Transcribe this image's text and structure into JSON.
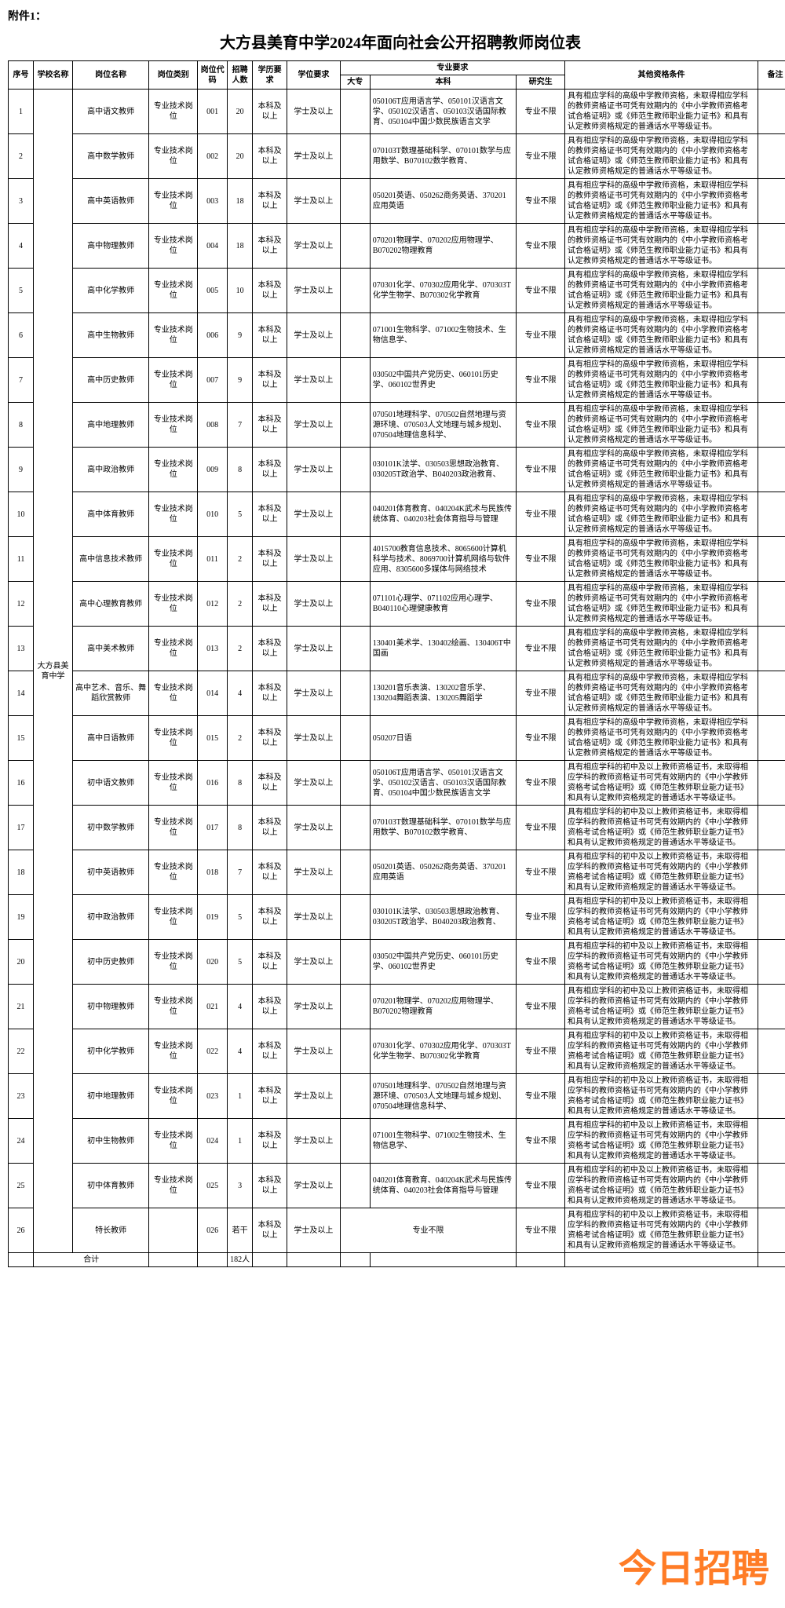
{
  "attachment_label": "附件1：",
  "title": "大方县美育中学2024年面向社会公开招聘教师岗位表",
  "headers": {
    "seq": "序号",
    "school": "学校名称",
    "posname": "岗位名称",
    "postype": "岗位类别",
    "code": "岗位代码",
    "count": "招聘人数",
    "edu": "学历要求",
    "degree": "学位要求",
    "major_group": "专业要求",
    "dazhuan": "大专",
    "benke": "本科",
    "yanjiu": "研究生",
    "other": "其他资格条件",
    "remark": "备注"
  },
  "school_name": "大方县美育中学",
  "total_label": "合计",
  "total_count": "182人",
  "watermark": "今日招聘",
  "common": {
    "postype": "专业技术岗位",
    "edu": "本科及以上",
    "degree": "学士及以上",
    "yanjiu": "专业不限",
    "other_gaozhong": "具有相应学科的高级中学教师资格，未取得相应学科的教师资格证书可凭有效期内的《中小学教师资格考试合格证明》或《师范生教师职业能力证书》和具有认定教师资格规定的普通话水平等级证书。",
    "other_chuzhong": "具有相应学科的初中及以上教师资格证书，未取得相应学科的教师资格证书可凭有效期内的《中小学教师资格考试合格证明》或《师范生教师职业能力证书》和具有认定教师资格规定的普通话水平等级证书。"
  },
  "rows": [
    {
      "seq": "1",
      "posname": "高中语文教师",
      "code": "001",
      "count": "20",
      "benke": "050106T应用语言学、050101汉语言文学、050102汉语言、050103汉语国际教育、050104中国少数民族语言文学",
      "other_key": "other_gaozhong"
    },
    {
      "seq": "2",
      "posname": "高中数学教师",
      "code": "002",
      "count": "20",
      "benke": "070103T数理基础科学、070101数学与应用数学、B070102数学教育、",
      "other_key": "other_gaozhong"
    },
    {
      "seq": "3",
      "posname": "高中英语教师",
      "code": "003",
      "count": "18",
      "benke": "050201英语、050262商务英语、370201应用英语",
      "other_key": "other_gaozhong"
    },
    {
      "seq": "4",
      "posname": "高中物理教师",
      "code": "004",
      "count": "18",
      "benke": "070201物理学、070202应用物理学、B070202物理教育",
      "other_key": "other_gaozhong"
    },
    {
      "seq": "5",
      "posname": "高中化学教师",
      "code": "005",
      "count": "10",
      "benke": "070301化学、070302应用化学、070303T化学生物学、B070302化学教育",
      "other_key": "other_gaozhong"
    },
    {
      "seq": "6",
      "posname": "高中生物教师",
      "code": "006",
      "count": "9",
      "benke": "071001生物科学、071002生物技术、生物信息学、",
      "other_key": "other_gaozhong"
    },
    {
      "seq": "7",
      "posname": "高中历史教师",
      "code": "007",
      "count": "9",
      "benke": "030502中国共产党历史、060101历史学、060102世界史",
      "other_key": "other_gaozhong"
    },
    {
      "seq": "8",
      "posname": "高中地理教师",
      "code": "008",
      "count": "7",
      "benke": "070501地理科学、070502自然地理与资源环境、070503人文地理与城乡规划、070504地理信息科学、",
      "other_key": "other_gaozhong"
    },
    {
      "seq": "9",
      "posname": "高中政治教师",
      "code": "009",
      "count": "8",
      "benke": "030101K法学、030503思想政治教育、030205T政治学、B040203政治教育、",
      "other_key": "other_gaozhong"
    },
    {
      "seq": "10",
      "posname": "高中体育教师",
      "code": "010",
      "count": "5",
      "benke": "040201体育教育、040204K武术与民族传统体育、040203社会体育指导与管理",
      "other_key": "other_gaozhong"
    },
    {
      "seq": "11",
      "posname": "高中信息技术教师",
      "code": "011",
      "count": "2",
      "benke": "4015700教育信息技术、8065600计算机科学与技术、8069700计算机网络与软件应用、8305600多媒体与网络技术",
      "other_key": "other_gaozhong"
    },
    {
      "seq": "12",
      "posname": "高中心理教育教师",
      "code": "012",
      "count": "2",
      "benke": "071101心理学、071102应用心理学、B040110心理健康教育",
      "other_key": "other_gaozhong"
    },
    {
      "seq": "13",
      "posname": "高中美术教师",
      "code": "013",
      "count": "2",
      "benke": "130401美术学、130402绘画、130406T中国画",
      "other_key": "other_gaozhong"
    },
    {
      "seq": "14",
      "posname": "高中艺术、音乐、舞蹈欣赏教师",
      "code": "014",
      "count": "4",
      "benke": "130201音乐表演、130202音乐学、130204舞蹈表演、130205舞蹈学",
      "other_key": "other_gaozhong"
    },
    {
      "seq": "15",
      "posname": "高中日语教师",
      "code": "015",
      "count": "2",
      "benke": "050207日语",
      "other_key": "other_gaozhong"
    },
    {
      "seq": "16",
      "posname": "初中语文教师",
      "code": "016",
      "count": "8",
      "benke": "050106T应用语言学、050101汉语言文学、050102汉语言、050103汉语国际教育、050104中国少数民族语言文学",
      "other_key": "other_chuzhong"
    },
    {
      "seq": "17",
      "posname": "初中数学教师",
      "code": "017",
      "count": "8",
      "benke": "070103T数理基础科学、070101数学与应用数学、B070102数学教育、",
      "other_key": "other_chuzhong"
    },
    {
      "seq": "18",
      "posname": "初中英语教师",
      "code": "018",
      "count": "7",
      "benke": "050201英语、050262商务英语、370201应用英语",
      "other_key": "other_chuzhong"
    },
    {
      "seq": "19",
      "posname": "初中政治教师",
      "code": "019",
      "count": "5",
      "benke": "030101K法学、030503思想政治教育、030205T政治学、B040203政治教育、",
      "other_key": "other_chuzhong"
    },
    {
      "seq": "20",
      "posname": "初中历史教师",
      "code": "020",
      "count": "5",
      "benke": "030502中国共产党历史、060101历史学、060102世界史",
      "other_key": "other_chuzhong"
    },
    {
      "seq": "21",
      "posname": "初中物理教师",
      "code": "021",
      "count": "4",
      "benke": "070201物理学、070202应用物理学、B070202物理教育",
      "other_key": "other_chuzhong"
    },
    {
      "seq": "22",
      "posname": "初中化学教师",
      "code": "022",
      "count": "4",
      "benke": "070301化学、070302应用化学、070303T化学生物学、B070302化学教育",
      "other_key": "other_chuzhong"
    },
    {
      "seq": "23",
      "posname": "初中地理教师",
      "code": "023",
      "count": "1",
      "benke": "070501地理科学、070502自然地理与资源环境、070503人文地理与城乡规划、070504地理信息科学、",
      "other_key": "other_chuzhong"
    },
    {
      "seq": "24",
      "posname": "初中生物教师",
      "code": "024",
      "count": "1",
      "benke": "071001生物科学、071002生物技术、生物信息学、",
      "other_key": "other_chuzhong"
    },
    {
      "seq": "25",
      "posname": "初中体育教师",
      "code": "025",
      "count": "3",
      "benke": "040201体育教育、040204K武术与民族传统体育、040203社会体育指导与管理",
      "other_key": "other_chuzhong"
    },
    {
      "seq": "26",
      "posname": "特长教师",
      "code": "026",
      "count": "若干",
      "benke": "专业不限",
      "other_key": "other_chuzhong",
      "special": true
    }
  ]
}
